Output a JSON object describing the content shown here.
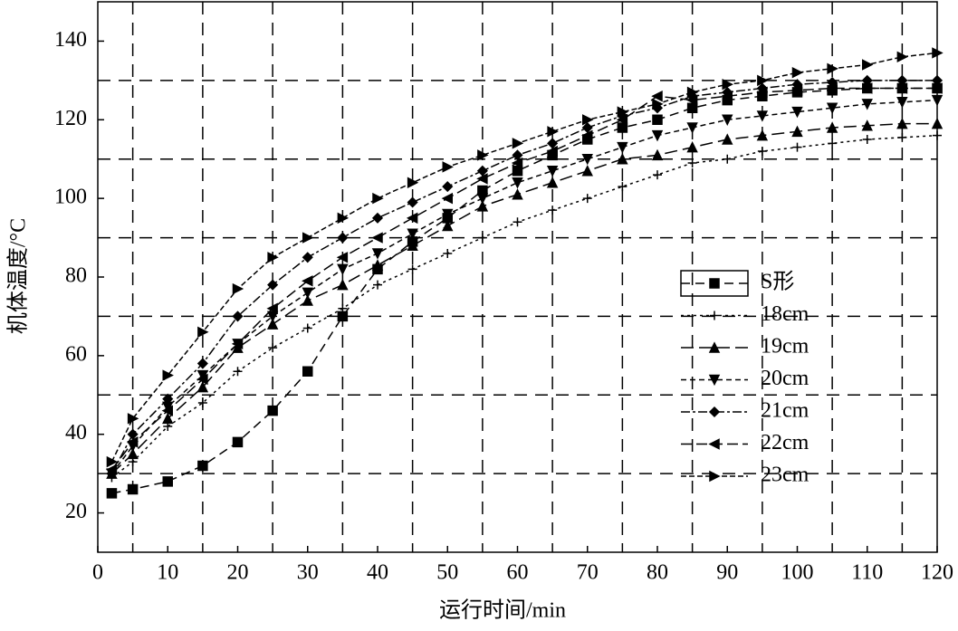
{
  "chart_data": {
    "type": "line",
    "x_label": "运行时间/min",
    "y_label": "机体温度/°C",
    "x": [
      2,
      5,
      10,
      15,
      20,
      25,
      30,
      35,
      40,
      45,
      50,
      55,
      60,
      65,
      70,
      75,
      80,
      85,
      90,
      95,
      100,
      105,
      110,
      115,
      120
    ],
    "xlim": [
      0,
      120
    ],
    "ylim": [
      10,
      150
    ],
    "xticks": [
      0,
      10,
      20,
      30,
      40,
      50,
      60,
      70,
      80,
      90,
      100,
      110,
      120
    ],
    "yticks": [
      20,
      40,
      60,
      80,
      100,
      120,
      140
    ],
    "grid_x": [
      5,
      15,
      25,
      35,
      45,
      55,
      65,
      75,
      85,
      95,
      105,
      115
    ],
    "grid_y": [
      30,
      50,
      70,
      90,
      110,
      130
    ],
    "series": [
      {
        "name": "S形",
        "color": "#000000",
        "marker": "square",
        "values": [
          25,
          26,
          28,
          32,
          38,
          46,
          56,
          70,
          82,
          89,
          95,
          102,
          107,
          111,
          115,
          118,
          120,
          123,
          125,
          126,
          127,
          127.5,
          128,
          128,
          128
        ]
      },
      {
        "name": "18cm",
        "color": "#000000",
        "marker": "plus",
        "values": [
          29,
          33,
          42,
          48,
          56,
          62,
          67,
          72,
          78,
          82,
          86,
          90,
          94,
          97,
          100,
          103,
          106,
          109,
          110,
          112,
          113,
          114,
          115,
          115.5,
          116
        ]
      },
      {
        "name": "19cm",
        "color": "#000000",
        "marker": "triangle-up",
        "values": [
          30,
          35,
          44,
          52,
          62,
          68,
          74,
          78,
          83,
          88,
          93,
          98,
          101,
          104,
          107,
          110,
          111,
          113,
          115,
          116,
          117,
          118,
          118.5,
          119,
          119
        ]
      },
      {
        "name": "20cm",
        "color": "#000000",
        "marker": "triangle-down",
        "values": [
          30,
          37,
          47,
          55,
          63,
          70,
          76,
          82,
          86,
          91,
          96,
          100,
          104,
          107,
          110,
          113,
          116,
          118,
          120,
          121,
          122,
          123,
          124,
          124.5,
          125
        ]
      },
      {
        "name": "21cm",
        "color": "#000000",
        "marker": "diamond",
        "values": [
          30,
          40,
          49,
          58,
          70,
          78,
          85,
          90,
          95,
          99,
          103,
          107,
          111,
          114,
          118,
          121,
          123,
          126,
          127,
          128,
          129,
          129.5,
          130,
          130,
          130
        ]
      },
      {
        "name": "22cm",
        "color": "#000000",
        "marker": "triangle-left",
        "values": [
          31,
          38,
          46,
          54,
          63,
          72,
          79,
          85,
          90,
          95,
          100,
          105,
          109,
          112,
          116,
          120,
          126,
          125,
          126,
          127,
          127.5,
          128,
          128,
          128,
          128
        ]
      },
      {
        "name": "23cm",
        "color": "#000000",
        "marker": "triangle-right",
        "values": [
          33,
          44,
          55,
          66,
          77,
          85,
          90,
          95,
          100,
          104,
          108,
          111,
          114,
          117,
          120,
          122,
          124,
          127,
          129,
          130,
          132,
          133,
          134,
          136,
          137
        ]
      }
    ]
  }
}
